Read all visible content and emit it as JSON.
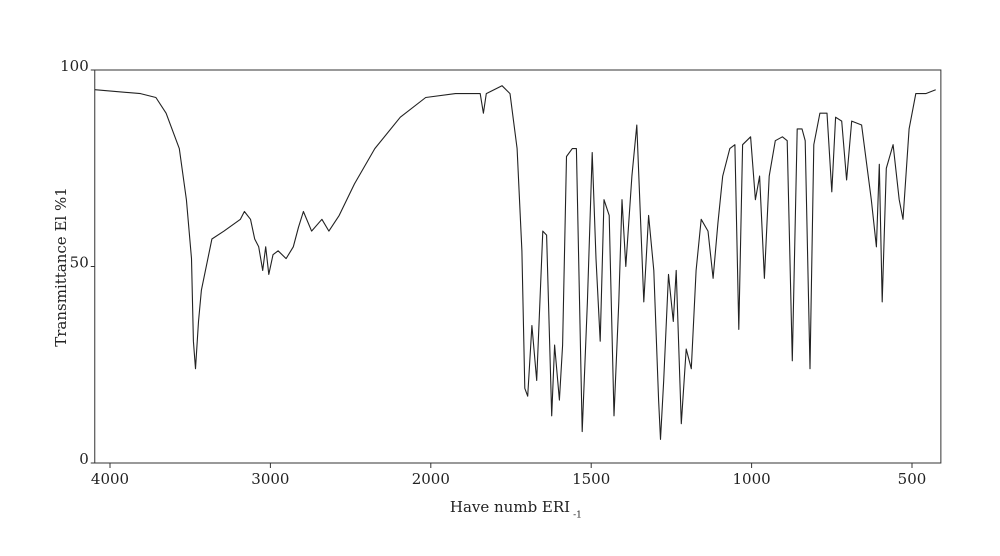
{
  "chart_data": {
    "type": "line",
    "y_label": "Transmittance El %1",
    "x_label": "Have numb ERI",
    "x_label_sub": "-1",
    "x": [
      4095,
      3810,
      3714,
      3650,
      3568,
      3524,
      3492,
      3480,
      3467,
      3448,
      3430,
      3365,
      3289,
      3187,
      3162,
      3124,
      3098,
      3073,
      3048,
      3029,
      3010,
      2984,
      2952,
      2902,
      2857,
      2825,
      2794,
      2743,
      2679,
      2635,
      2571,
      2476,
      2349,
      2190,
      2032,
      1923,
      1846,
      1836,
      1827,
      1778,
      1753,
      1731,
      1716,
      1707,
      1698,
      1685,
      1670,
      1651,
      1639,
      1623,
      1614,
      1599,
      1589,
      1577,
      1559,
      1546,
      1528,
      1512,
      1497,
      1485,
      1472,
      1460,
      1444,
      1429,
      1414,
      1404,
      1392,
      1373,
      1358,
      1336,
      1321,
      1305,
      1290,
      1284,
      1274,
      1259,
      1244,
      1235,
      1219,
      1204,
      1188,
      1173,
      1157,
      1136,
      1120,
      1105,
      1090,
      1068,
      1052,
      1040,
      1028,
      1003,
      988,
      975,
      960,
      945,
      926,
      904,
      889,
      873,
      858,
      843,
      833,
      818,
      806,
      787,
      765,
      750,
      738,
      719,
      704,
      688,
      657,
      627,
      611,
      602,
      593,
      580,
      559,
      540,
      528,
      509,
      488,
      457,
      426
    ],
    "series": [
      {
        "name": "Transmittance",
        "color": "#222222",
        "values": [
          95,
          94,
          93,
          89,
          80,
          67,
          52,
          31,
          24,
          36,
          44,
          57,
          59,
          62,
          64,
          62,
          57,
          55,
          49,
          55,
          48,
          53,
          54,
          52,
          55,
          60,
          64,
          59,
          62,
          59,
          63,
          71,
          80,
          88,
          93,
          94,
          94,
          89,
          94,
          96,
          94,
          80,
          54,
          19,
          17,
          35,
          21,
          59,
          58,
          12,
          30,
          16,
          30,
          78,
          80,
          80,
          8,
          41,
          79,
          52,
          31,
          67,
          63,
          12,
          41,
          67,
          50,
          73,
          86,
          41,
          63,
          49,
          16,
          6,
          21,
          48,
          36,
          49,
          10,
          29,
          24,
          49,
          62,
          59,
          47,
          61,
          73,
          80,
          81,
          34,
          81,
          83,
          67,
          73,
          47,
          73,
          82,
          83,
          82,
          26,
          85,
          85,
          82,
          24,
          81,
          89,
          89,
          69,
          88,
          87,
          72,
          87,
          86,
          67,
          55,
          76,
          41,
          75,
          81,
          67,
          62,
          85,
          94,
          94,
          95
        ]
      }
    ],
    "xlim": [
      4095,
      410
    ],
    "ylim": [
      0,
      100
    ],
    "xticks": [
      4000,
      3000,
      2000,
      1500,
      1000,
      500
    ],
    "yticks": [
      0,
      50,
      100
    ],
    "grid": false
  }
}
